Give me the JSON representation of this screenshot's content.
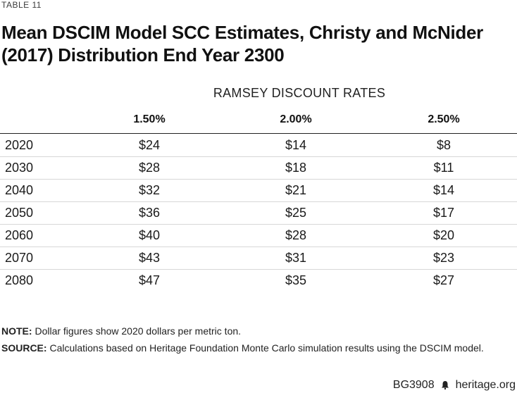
{
  "table_label": "TABLE 11",
  "title": "Mean DSCIM Model SCC Estimates, Christy and McNider (2017) Distribution End Year 2300",
  "group_header": "RAMSEY DISCOUNT RATES",
  "columns": [
    "1.50%",
    "2.00%",
    "2.50%"
  ],
  "rows": [
    {
      "year": "2020",
      "values": [
        "$24",
        "$14",
        "$8"
      ]
    },
    {
      "year": "2030",
      "values": [
        "$28",
        "$18",
        "$11"
      ]
    },
    {
      "year": "2040",
      "values": [
        "$32",
        "$21",
        "$14"
      ]
    },
    {
      "year": "2050",
      "values": [
        "$36",
        "$25",
        "$17"
      ]
    },
    {
      "year": "2060",
      "values": [
        "$40",
        "$28",
        "$20"
      ]
    },
    {
      "year": "2070",
      "values": [
        "$43",
        "$31",
        "$23"
      ]
    },
    {
      "year": "2080",
      "values": [
        "$47",
        "$35",
        "$27"
      ]
    }
  ],
  "note": {
    "label": "NOTE:",
    "text": " Dollar figures show 2020 dollars per metric ton."
  },
  "source": {
    "label": "SOURCE:",
    "text": " Calculations based on Heritage Foundation Monte Carlo simulation results using the DSCIM model."
  },
  "footer": {
    "code": "BG3908",
    "site": "heritage.org"
  }
}
